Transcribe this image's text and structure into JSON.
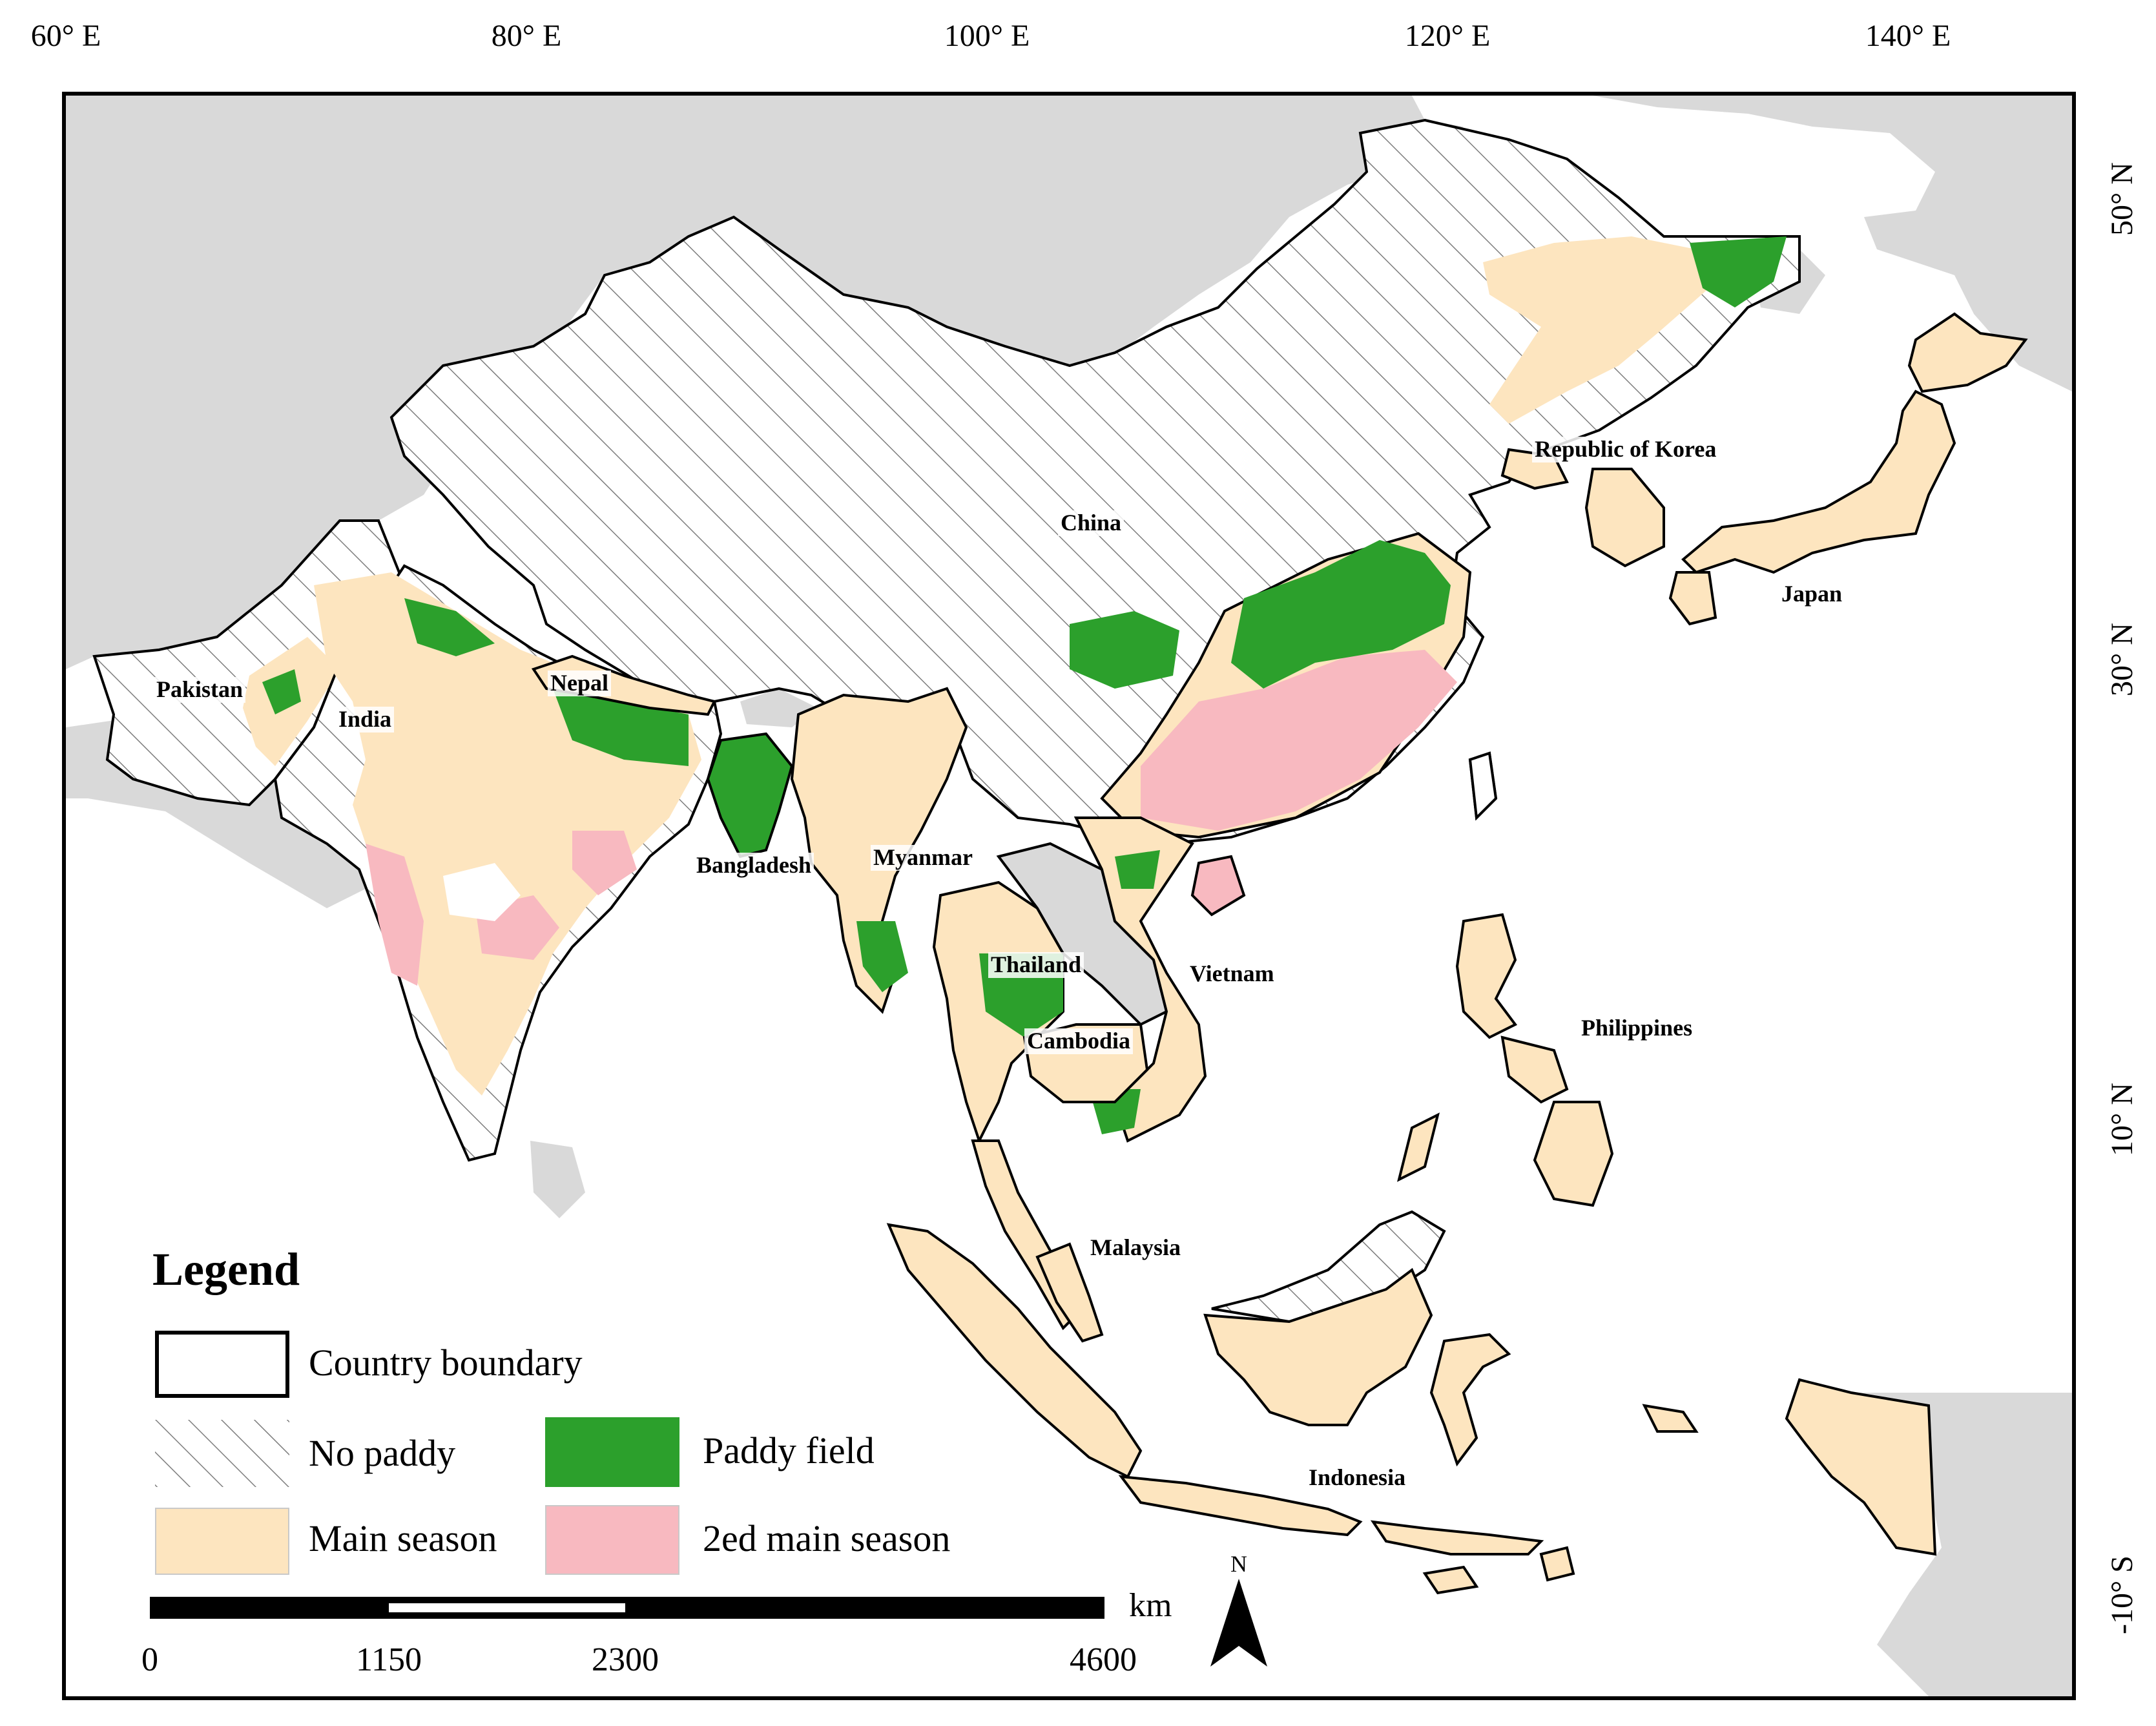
{
  "graticule": {
    "longitudes": [
      "60° E",
      "80° E",
      "100° E",
      "120° E",
      "140° E"
    ],
    "latitudes": [
      "50° N",
      "30° N",
      "10° N",
      "-10° S"
    ]
  },
  "countries": {
    "china": "China",
    "republic_of_korea": "Republic of Korea",
    "japan": "Japan",
    "pakistan": "Pakistan",
    "india": "India",
    "nepal": "Nepal",
    "bangladesh": "Bangladesh",
    "myanmar": "Myanmar",
    "thailand": "Thailand",
    "vietnam": "Vietnam",
    "cambodia": "Cambodia",
    "philippines": "Philippines",
    "malaysia": "Malaysia",
    "indonesia": "Indonesia"
  },
  "legend": {
    "title": "Legend",
    "items": [
      {
        "label": "Country boundary",
        "fill": "#ffffff",
        "pattern": "none"
      },
      {
        "label": "No paddy",
        "fill": "#ffffff",
        "pattern": "hatch"
      },
      {
        "label": "Paddy field",
        "fill": "#2ca02c",
        "pattern": "none"
      },
      {
        "label": "Main season",
        "fill": "#fde5bf",
        "pattern": "none"
      },
      {
        "label": "2ed main season",
        "fill": "#f8b9c0",
        "pattern": "none"
      }
    ]
  },
  "scale_bar": {
    "unit": "km",
    "ticks": [
      "0",
      "1150",
      "2300",
      "4600"
    ]
  },
  "north_arrow": {
    "label": "N"
  },
  "colors": {
    "background_land": "#d9d9d9",
    "sea": "#ffffff",
    "main_season": "#fde5bf",
    "paddy_field": "#2ca02c",
    "second_main_season": "#f8b9c0",
    "boundary": "#000000"
  }
}
